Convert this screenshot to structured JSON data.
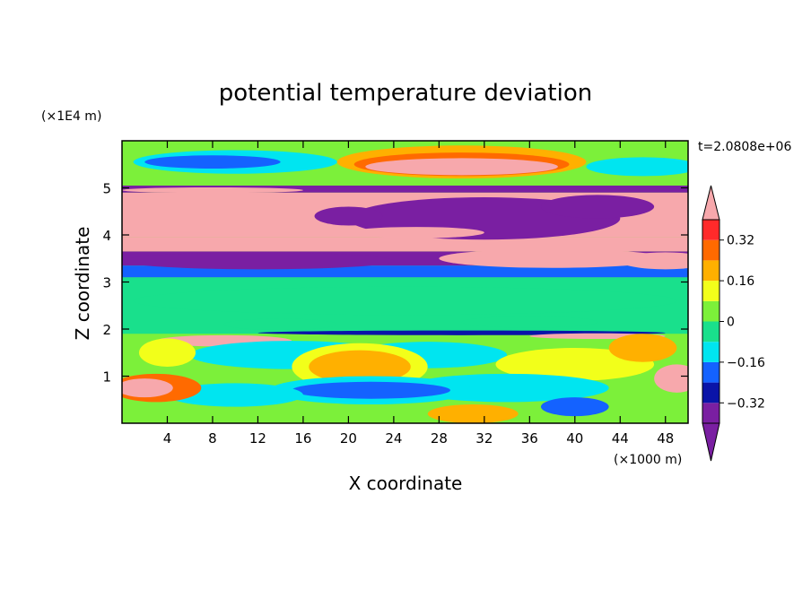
{
  "chart_data": {
    "type": "heatmap",
    "title": "potential temperature deviation",
    "xlabel": "X coordinate",
    "ylabel": "Z coordinate",
    "x_unit": "(×1000 m)",
    "y_unit": "(×1E4 m)",
    "time_label": "t=2.0808e+06",
    "xlim": [
      0,
      50
    ],
    "ylim": [
      0,
      6
    ],
    "x_ticks": [
      4,
      8,
      12,
      16,
      20,
      24,
      28,
      32,
      36,
      40,
      44,
      48
    ],
    "y_ticks": [
      1,
      2,
      3,
      4,
      5
    ],
    "colorbar": {
      "bins": [
        {
          "lo": -0.4,
          "hi": -0.32,
          "color": "#7a1fa2"
        },
        {
          "lo": -0.32,
          "hi": -0.24,
          "color": "#0a14a8"
        },
        {
          "lo": -0.24,
          "hi": -0.16,
          "color": "#1462ff"
        },
        {
          "lo": -0.16,
          "hi": -0.08,
          "color": "#00e5f0"
        },
        {
          "lo": -0.08,
          "hi": 0.0,
          "color": "#19e08c"
        },
        {
          "lo": 0.0,
          "hi": 0.08,
          "color": "#7cf03a"
        },
        {
          "lo": 0.08,
          "hi": 0.16,
          "color": "#f2ff1a"
        },
        {
          "lo": 0.16,
          "hi": 0.24,
          "color": "#ffb000"
        },
        {
          "lo": 0.24,
          "hi": 0.32,
          "color": "#ff6a00"
        },
        {
          "lo": 0.32,
          "hi": 0.4,
          "color": "#ff2a2a"
        }
      ],
      "under_color": "#7a1fa2",
      "over_color": "#f7a8ac",
      "tick_labels": [
        "0.32",
        "0.16",
        "0",
        "−0.16",
        "−0.32"
      ],
      "tick_values": [
        0.32,
        0.16,
        0.0,
        -0.16,
        -0.32
      ]
    },
    "regions": [
      {
        "kind": "band",
        "y0": 0.0,
        "y1": 6.0,
        "value": 0.04
      },
      {
        "kind": "band",
        "y0": 0.0,
        "y1": 1.9,
        "value": 0.02
      },
      {
        "kind": "band",
        "y0": 1.9,
        "y1": 3.1,
        "value": -0.03
      },
      {
        "kind": "band",
        "y0": 3.1,
        "y1": 3.35,
        "value": -0.2
      },
      {
        "kind": "band",
        "y0": 3.35,
        "y1": 3.65,
        "value": -0.5
      },
      {
        "kind": "band",
        "y0": 3.65,
        "y1": 3.95,
        "value": 0.5
      },
      {
        "kind": "band",
        "y0": 3.95,
        "y1": 4.9,
        "value": 0.5
      },
      {
        "kind": "band",
        "y0": 4.9,
        "y1": 5.05,
        "value": -0.5
      },
      {
        "kind": "band",
        "y0": 5.05,
        "y1": 5.3,
        "value": 0.02
      },
      {
        "kind": "band",
        "y0": 5.3,
        "y1": 6.0,
        "value": 0.04
      },
      {
        "kind": "blob",
        "cx": 10,
        "cy": 5.55,
        "rx": 9,
        "ry": 0.25,
        "value": -0.1
      },
      {
        "kind": "blob",
        "cx": 8,
        "cy": 5.55,
        "rx": 6,
        "ry": 0.14,
        "value": -0.2
      },
      {
        "kind": "blob",
        "cx": 46,
        "cy": 5.45,
        "rx": 5,
        "ry": 0.2,
        "value": -0.1
      },
      {
        "kind": "blob",
        "cx": 30,
        "cy": 5.55,
        "rx": 11,
        "ry": 0.35,
        "value": 0.2
      },
      {
        "kind": "blob",
        "cx": 30,
        "cy": 5.5,
        "rx": 9.5,
        "ry": 0.25,
        "value": 0.3
      },
      {
        "kind": "blob",
        "cx": 30,
        "cy": 5.45,
        "rx": 8.5,
        "ry": 0.18,
        "value": 0.5
      },
      {
        "kind": "blob",
        "cx": 32,
        "cy": 4.35,
        "rx": 12,
        "ry": 0.45,
        "value": -0.5
      },
      {
        "kind": "blob",
        "cx": 20,
        "cy": 4.4,
        "rx": 3,
        "ry": 0.2,
        "value": -0.5
      },
      {
        "kind": "blob",
        "cx": 42,
        "cy": 4.6,
        "rx": 5,
        "ry": 0.25,
        "value": -0.5
      },
      {
        "kind": "blob",
        "cx": 12,
        "cy": 3.45,
        "rx": 12,
        "ry": 0.18,
        "value": -0.5
      },
      {
        "kind": "blob",
        "cx": 38,
        "cy": 3.5,
        "rx": 10,
        "ry": 0.2,
        "value": 0.5
      },
      {
        "kind": "blob",
        "cx": 48,
        "cy": 3.45,
        "rx": 4,
        "ry": 0.18,
        "value": 0.5
      },
      {
        "kind": "blob",
        "cx": 8,
        "cy": 4.95,
        "rx": 8,
        "ry": 0.06,
        "value": 0.5
      },
      {
        "kind": "blob",
        "cx": 26,
        "cy": 4.05,
        "rx": 6,
        "ry": 0.12,
        "value": 0.5
      },
      {
        "kind": "blob",
        "cx": 25,
        "cy": 2.6,
        "rx": 24,
        "ry": 0.3,
        "value": -0.04
      },
      {
        "kind": "blob",
        "cx": 14,
        "cy": 2.1,
        "rx": 5,
        "ry": 0.12,
        "value": -0.04
      },
      {
        "kind": "blob",
        "cx": 36,
        "cy": 2.15,
        "rx": 6,
        "ry": 0.12,
        "value": -0.04
      },
      {
        "kind": "blob",
        "cx": 30,
        "cy": 1.92,
        "rx": 18,
        "ry": 0.05,
        "value": -0.3
      },
      {
        "kind": "blob",
        "cx": 42,
        "cy": 1.85,
        "rx": 6,
        "ry": 0.06,
        "value": 0.5
      },
      {
        "kind": "blob",
        "cx": 9,
        "cy": 1.75,
        "rx": 6,
        "ry": 0.12,
        "value": 0.5
      },
      {
        "kind": "blob",
        "cx": 15,
        "cy": 1.45,
        "rx": 9,
        "ry": 0.3,
        "value": -0.1
      },
      {
        "kind": "blob",
        "cx": 27,
        "cy": 1.45,
        "rx": 7,
        "ry": 0.28,
        "value": -0.1
      },
      {
        "kind": "blob",
        "cx": 21,
        "cy": 1.2,
        "rx": 6,
        "ry": 0.5,
        "value": 0.1
      },
      {
        "kind": "blob",
        "cx": 21,
        "cy": 1.2,
        "rx": 4.5,
        "ry": 0.35,
        "value": 0.2
      },
      {
        "kind": "blob",
        "cx": 40,
        "cy": 1.25,
        "rx": 7,
        "ry": 0.35,
        "value": 0.1
      },
      {
        "kind": "blob",
        "cx": 34,
        "cy": 0.75,
        "rx": 9,
        "ry": 0.3,
        "value": -0.1
      },
      {
        "kind": "blob",
        "cx": 22,
        "cy": 0.7,
        "rx": 9,
        "ry": 0.3,
        "value": -0.1
      },
      {
        "kind": "blob",
        "cx": 22,
        "cy": 0.7,
        "rx": 7,
        "ry": 0.18,
        "value": -0.22
      },
      {
        "kind": "blob",
        "cx": 10,
        "cy": 0.6,
        "rx": 6,
        "ry": 0.25,
        "value": -0.1
      },
      {
        "kind": "blob",
        "cx": 3,
        "cy": 0.75,
        "rx": 4,
        "ry": 0.3,
        "value": 0.3
      },
      {
        "kind": "blob",
        "cx": 2,
        "cy": 0.75,
        "rx": 2.5,
        "ry": 0.2,
        "value": 0.5
      },
      {
        "kind": "blob",
        "cx": 49,
        "cy": 0.95,
        "rx": 2,
        "ry": 0.3,
        "value": 0.5
      },
      {
        "kind": "blob",
        "cx": 31,
        "cy": 0.2,
        "rx": 4,
        "ry": 0.2,
        "value": 0.2
      },
      {
        "kind": "blob",
        "cx": 40,
        "cy": 0.35,
        "rx": 3,
        "ry": 0.2,
        "value": -0.22
      },
      {
        "kind": "blob",
        "cx": 4,
        "cy": 1.5,
        "rx": 2.5,
        "ry": 0.3,
        "value": 0.15
      },
      {
        "kind": "blob",
        "cx": 46,
        "cy": 1.6,
        "rx": 3,
        "ry": 0.3,
        "value": 0.2
      }
    ]
  }
}
